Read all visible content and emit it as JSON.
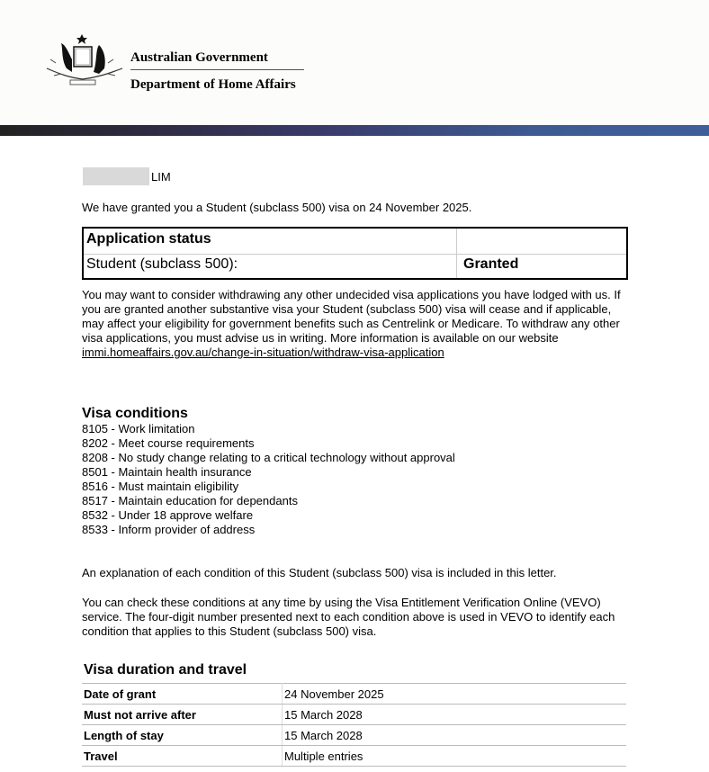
{
  "header": {
    "line1": "Australian Government",
    "line2": "Department of Home Affairs",
    "crest_icon": "australian-coat-of-arms",
    "band_colors": [
      "#222222",
      "#3f5f9a"
    ]
  },
  "recipient": {
    "surname": "LIM"
  },
  "intro": "We have granted you a Student (subclass 500) visa on 24 November 2025.",
  "status": {
    "title": "Application status",
    "visa": "Student (subclass 500):",
    "value": "Granted"
  },
  "withdraw": {
    "text": "You may want to consider withdrawing any other undecided visa applications you have lodged with us. If you are granted another substantive visa your Student (subclass 500) visa will cease and if applicable, may affect your eligibility for government benefits such as Centrelink or Medicare. To withdraw any other visa applications, you must advise us in writing. More information is available on our website ",
    "link": "immi.homeaffairs.gov.au/change-in-situation/withdraw-visa-application"
  },
  "conditions": {
    "title": "Visa conditions",
    "items": [
      "8105 - Work limitation",
      "8202 - Meet course requirements",
      "8208 - No study change relating to a critical technology without approval",
      "8501 - Maintain health insurance",
      "8516 - Must maintain eligibility",
      "8517 - Maintain education for dependants",
      "8532 - Under 18 approve welfare",
      "8533 - Inform provider of address"
    ]
  },
  "explanation": "An explanation of each condition of this Student (subclass 500) visa is included in this letter.",
  "vevo": "You can check these conditions at any time by using the Visa Entitlement Verification Online (VEVO) service. The four-digit number presented next to each condition above is used in VEVO to identify each condition that applies to this Student (subclass 500) visa.",
  "duration": {
    "title": "Visa duration and travel",
    "rows": [
      {
        "label": "Date of grant",
        "value": "24 November 2025"
      },
      {
        "label": "Must not arrive after",
        "value": "15 March 2028"
      },
      {
        "label": "Length of stay",
        "value": "15 March 2028"
      },
      {
        "label": "Travel",
        "value": "Multiple entries"
      }
    ]
  }
}
